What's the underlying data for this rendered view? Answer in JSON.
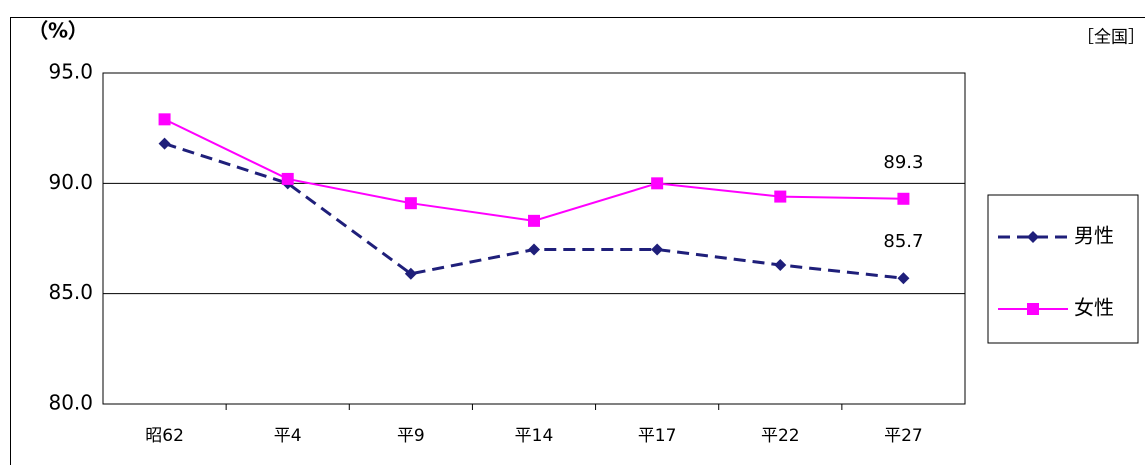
{
  "chart_data": {
    "type": "line",
    "unit_label": "（%）",
    "region_label": "［全国］",
    "categories": [
      "昭62",
      "平4",
      "平9",
      "平14",
      "平17",
      "平22",
      "平27"
    ],
    "series": [
      {
        "name": "男性",
        "color": "#1f1f7a",
        "dashed": true,
        "marker": "diamond",
        "values": [
          91.8,
          90.0,
          85.9,
          87.0,
          87.0,
          86.3,
          85.7
        ],
        "value_labels": [
          null,
          null,
          null,
          null,
          null,
          null,
          "85.7"
        ]
      },
      {
        "name": "女性",
        "color": "#ff00ff",
        "dashed": false,
        "marker": "square",
        "values": [
          92.9,
          90.2,
          89.1,
          88.3,
          90.0,
          89.4,
          89.3
        ],
        "value_labels": [
          null,
          null,
          null,
          null,
          null,
          null,
          "89.3"
        ]
      }
    ],
    "ylim": [
      80,
      95
    ],
    "yticks": [
      {
        "value": 80,
        "label": "80.0"
      },
      {
        "value": 85,
        "label": "85.0"
      },
      {
        "value": 90,
        "label": "90.0"
      },
      {
        "value": 95,
        "label": "95.0"
      }
    ],
    "grid": true
  }
}
